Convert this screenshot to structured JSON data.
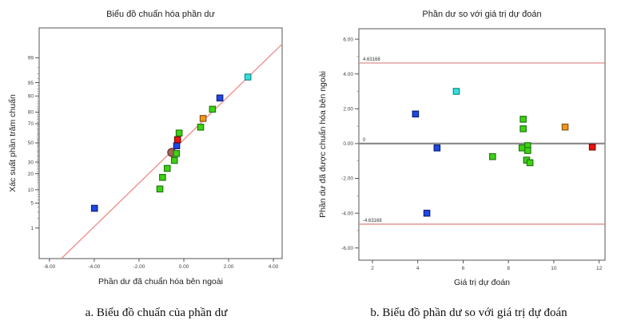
{
  "captions": {
    "a": "a. Biểu đồ chuẩn của phần dư",
    "b": "b. Biểu đồ phần dư so với giá trị dự đoán"
  },
  "marker_colors": {
    "green": {
      "fill": "#3fd215",
      "stroke": "#1f7a0e"
    },
    "blue": {
      "fill": "#1e49e2",
      "stroke": "#0c1f7a"
    },
    "cyan": {
      "fill": "#35e0dc",
      "stroke": "#0f8c8c"
    },
    "orange": {
      "fill": "#f0961e",
      "stroke": "#8a5410"
    },
    "red": {
      "fill": "#e8150f",
      "stroke": "#7a0c08"
    },
    "brown": {
      "fill": "#a8625a",
      "stroke": "#5e342e"
    }
  },
  "chart_data": [
    {
      "type": "scatter",
      "title": "Biểu đồ chuẩn hóa phần dư",
      "xlabel": "Phần dư đã chuẩn hóa bên ngoài",
      "ylabel": "Xác suất phần trăm chuẩn",
      "y_scale": "normal_probability_percent",
      "xlim": [
        -6.46,
        4.39
      ],
      "zlim": [
        -3.16,
        3.14
      ],
      "x_ticks": [
        -6,
        -4,
        -2,
        0,
        2,
        4
      ],
      "x_tick_labels": [
        "-6.00",
        "-4.00",
        "-2.00",
        "0.00",
        "2.00",
        "4.00"
      ],
      "y_ticks": [
        1,
        5,
        10,
        20,
        30,
        50,
        70,
        80,
        90,
        95,
        99
      ],
      "y_minor_ticks_every_percent": true,
      "fit_line": {
        "x": [
          -5.47,
          4.39
        ],
        "z": [
          -3.16,
          2.7
        ],
        "color": "#ef8a8a"
      },
      "points": [
        {
          "x": -3.99,
          "p": 3.7,
          "color": "blue",
          "shape": "square"
        },
        {
          "x": -1.07,
          "p": 10.4,
          "color": "green",
          "shape": "square"
        },
        {
          "x": -0.95,
          "p": 17.3,
          "color": "green",
          "shape": "square"
        },
        {
          "x": -0.74,
          "p": 24.3,
          "color": "green",
          "shape": "square"
        },
        {
          "x": -0.42,
          "p": 31.6,
          "color": "green",
          "shape": "square"
        },
        {
          "x": -0.54,
          "p": 39.7,
          "color": "brown",
          "shape": "circle"
        },
        {
          "x": -0.33,
          "p": 38.6,
          "color": "green",
          "shape": "square"
        },
        {
          "x": -0.32,
          "p": 46.8,
          "color": "blue",
          "shape": "square"
        },
        {
          "x": -0.28,
          "p": 53.5,
          "color": "red",
          "shape": "square"
        },
        {
          "x": -0.21,
          "p": 60.6,
          "color": "green",
          "shape": "square"
        },
        {
          "x": 0.75,
          "p": 66.6,
          "color": "green",
          "shape": "square"
        },
        {
          "x": 0.86,
          "p": 74.8,
          "color": "orange",
          "shape": "square"
        },
        {
          "x": 1.28,
          "p": 82.1,
          "color": "green",
          "shape": "square"
        },
        {
          "x": 1.61,
          "p": 89.0,
          "color": "blue",
          "shape": "square"
        },
        {
          "x": 2.86,
          "p": 96.4,
          "color": "cyan",
          "shape": "square"
        }
      ]
    },
    {
      "type": "scatter",
      "title": "Phần dư so với giá trị dự đoán",
      "xlabel": "Giá trị dự đoán",
      "ylabel": "Phần dư đã được chuẩn hóa bên ngoài",
      "xlim": [
        1.4,
        12.26
      ],
      "ylim": [
        -6.7,
        6.6
      ],
      "x_ticks": [
        2,
        4,
        6,
        8,
        10,
        12
      ],
      "x_tick_labels": [
        "2",
        "4",
        "6",
        "8",
        "10",
        "12"
      ],
      "y_ticks": [
        6,
        4,
        2,
        0,
        -2,
        -4,
        -6
      ],
      "y_tick_labels": [
        "6.00",
        "4.00",
        "2.00",
        "0.00",
        "-2.00",
        "-4.00",
        "-6.00"
      ],
      "ref_lines": [
        {
          "y": 4.63168,
          "label": "4.63168",
          "color": "#d98080",
          "width": 1.2
        },
        {
          "y": 0,
          "label": "0",
          "color": "#8c8c8c",
          "width": 2.2
        },
        {
          "y": -4.63168,
          "label": "-4.63168",
          "color": "#d98080",
          "width": 1.2
        }
      ],
      "points": [
        {
          "x": 3.9,
          "y": 1.7,
          "color": "blue",
          "shape": "square"
        },
        {
          "x": 5.7,
          "y": 3.0,
          "color": "cyan",
          "shape": "square"
        },
        {
          "x": 4.85,
          "y": -0.25,
          "color": "blue",
          "shape": "square"
        },
        {
          "x": 4.4,
          "y": -4.0,
          "color": "blue",
          "shape": "square"
        },
        {
          "x": 7.3,
          "y": -0.75,
          "color": "green",
          "shape": "square"
        },
        {
          "x": 8.65,
          "y": 1.4,
          "color": "green",
          "shape": "square"
        },
        {
          "x": 8.65,
          "y": 0.85,
          "color": "green",
          "shape": "square"
        },
        {
          "x": 8.6,
          "y": -0.25,
          "color": "green",
          "shape": "square"
        },
        {
          "x": 8.85,
          "y": -0.12,
          "color": "green",
          "shape": "square"
        },
        {
          "x": 8.85,
          "y": -0.4,
          "color": "green",
          "shape": "square"
        },
        {
          "x": 8.8,
          "y": -0.95,
          "color": "green",
          "shape": "square"
        },
        {
          "x": 8.95,
          "y": -1.1,
          "color": "green",
          "shape": "square"
        },
        {
          "x": 10.5,
          "y": 0.95,
          "color": "orange",
          "shape": "square"
        },
        {
          "x": 11.7,
          "y": -0.2,
          "color": "red",
          "shape": "square"
        }
      ]
    }
  ]
}
